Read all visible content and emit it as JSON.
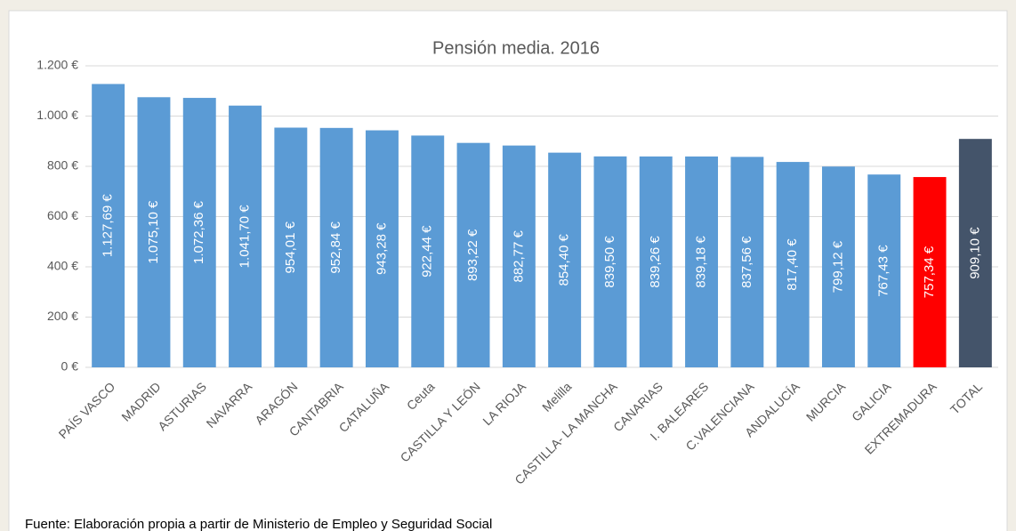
{
  "chart_data": {
    "type": "bar",
    "title": "Pensión media. 2016",
    "categories": [
      "PAÍS VASCO",
      "MADRID",
      "ASTURIAS",
      "NAVARRA",
      "ARAGÓN",
      "CANTABRIA",
      "CATALUÑA",
      "Ceuta",
      "CASTILLA Y LEÓN",
      "LA RIOJA",
      "Melilla",
      "CASTILLA- LA MANCHA",
      "CANARIAS",
      "I. BALEARES",
      "C.VALENCIANA",
      "ANDALUCÍA",
      "MURCIA",
      "GALICIA",
      "EXTREMADURA",
      "TOTAL"
    ],
    "values": [
      1127.69,
      1075.1,
      1072.36,
      1041.7,
      954.01,
      952.84,
      943.28,
      922.44,
      893.22,
      882.77,
      854.4,
      839.5,
      839.26,
      839.18,
      837.56,
      817.4,
      799.12,
      767.43,
      757.34,
      909.1
    ],
    "value_labels": [
      "1.127,69 €",
      "1.075,10 €",
      "1.072,36 €",
      "1.041,70 €",
      "954,01 €",
      "952,84 €",
      "943,28 €",
      "922,44 €",
      "893,22 €",
      "882,77 €",
      "854,40 €",
      "839,50 €",
      "839,26 €",
      "839,18 €",
      "837,56 €",
      "817,40 €",
      "799,12 €",
      "767,43 €",
      "757,34 €",
      "909,10 €"
    ],
    "colors": [
      "#5b9bd5",
      "#5b9bd5",
      "#5b9bd5",
      "#5b9bd5",
      "#5b9bd5",
      "#5b9bd5",
      "#5b9bd5",
      "#5b9bd5",
      "#5b9bd5",
      "#5b9bd5",
      "#5b9bd5",
      "#5b9bd5",
      "#5b9bd5",
      "#5b9bd5",
      "#5b9bd5",
      "#5b9bd5",
      "#5b9bd5",
      "#5b9bd5",
      "#ff0000",
      "#44546a"
    ],
    "ylim": [
      0,
      1200
    ],
    "yticks": [
      {
        "value": 0,
        "label": "0 €"
      },
      {
        "value": 200,
        "label": "200 €"
      },
      {
        "value": 400,
        "label": "400 €"
      },
      {
        "value": 600,
        "label": "600 €"
      },
      {
        "value": 800,
        "label": "800 €"
      },
      {
        "value": 1000,
        "label": "1.000 €"
      },
      {
        "value": 1200,
        "label": "1.200 €"
      }
    ],
    "grid": true,
    "source": "Fuente: Elaboración propia a partir de Ministerio de Empleo y Seguridad Social"
  }
}
